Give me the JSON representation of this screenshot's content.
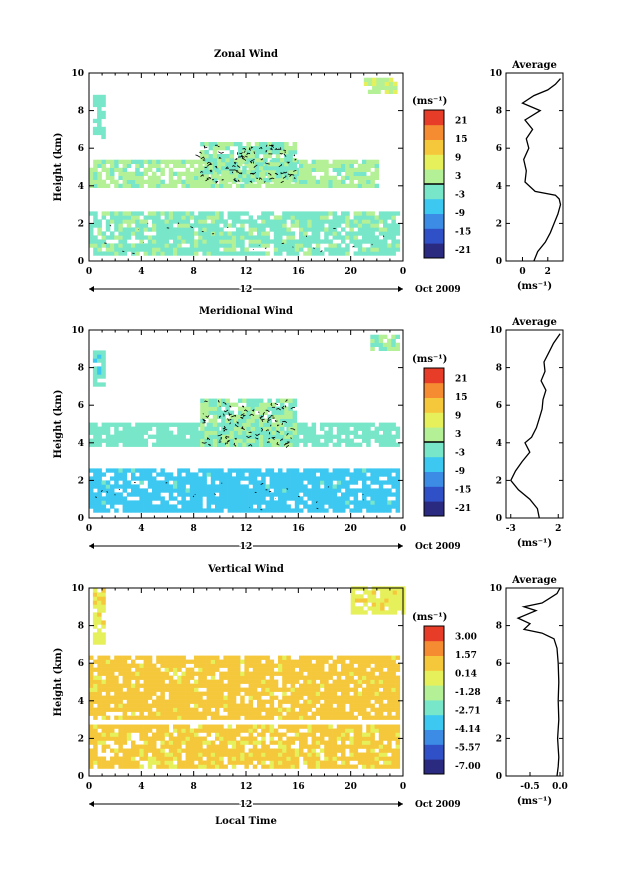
{
  "panels": [
    {
      "title": "Zonal Wind",
      "ylabel": "Height (km)",
      "xlabel": "",
      "date_label": "Oct 2009",
      "date_tick": "12",
      "xticks": [
        "0",
        "4",
        "8",
        "12",
        "16",
        "20",
        "0"
      ],
      "yticks": [
        "0",
        "2",
        "4",
        "6",
        "8",
        "10"
      ],
      "colorbar": {
        "unit": "(ms⁻¹)",
        "ticks": [
          "21",
          "15",
          "9",
          "3",
          "-3",
          "-9",
          "-15",
          "-21"
        ],
        "marker": "0"
      },
      "avg": {
        "title": "Average",
        "xlabel": "(ms⁻¹)",
        "xticks": [
          "0",
          "2"
        ],
        "yticks": [
          "0",
          "2",
          "4",
          "6",
          "8",
          "10"
        ]
      }
    },
    {
      "title": "Meridional Wind",
      "ylabel": "Height (km)",
      "xlabel": "",
      "date_label": "Oct 2009",
      "date_tick": "12",
      "xticks": [
        "0",
        "4",
        "8",
        "12",
        "16",
        "20",
        "0"
      ],
      "yticks": [
        "0",
        "2",
        "4",
        "6",
        "8",
        "10"
      ],
      "colorbar": {
        "unit": "(ms⁻¹)",
        "ticks": [
          "21",
          "15",
          "9",
          "3",
          "-3",
          "-9",
          "-15",
          "-21"
        ],
        "marker": "0"
      },
      "avg": {
        "title": "Average",
        "xlabel": "(ms⁻¹)",
        "xticks": [
          "-3",
          "2"
        ],
        "yticks": [
          "0",
          "2",
          "4",
          "6",
          "8",
          "10"
        ]
      }
    },
    {
      "title": "Vertical Wind",
      "ylabel": "Height (km)",
      "xlabel": "Local Time",
      "date_label": "Oct 2009",
      "date_tick": "12",
      "xticks": [
        "0",
        "4",
        "8",
        "12",
        "16",
        "20",
        "0"
      ],
      "yticks": [
        "0",
        "2",
        "4",
        "6",
        "8",
        "10"
      ],
      "colorbar": {
        "unit": "(ms⁻¹)",
        "ticks": [
          "3.00",
          "1.57",
          "0.14",
          "-1.28",
          "-2.71",
          "-4.14",
          "-5.57",
          "-7.00"
        ],
        "marker": ""
      },
      "avg": {
        "title": "Average",
        "xlabel": "(ms⁻¹)",
        "xticks": [
          "-0.5",
          "0.0"
        ],
        "yticks": [
          "0",
          "2",
          "4",
          "6",
          "8",
          "10"
        ]
      }
    }
  ],
  "colorbar_colors": [
    "#2a2a80",
    "#3050c8",
    "#3c8ce6",
    "#3cc8f0",
    "#78e6c8",
    "#b4f096",
    "#e6f05a",
    "#f5c83c",
    "#f58c32",
    "#e63c28"
  ],
  "chart_data": [
    {
      "type": "heatmap",
      "title": "Zonal Wind",
      "xlabel": "",
      "ylabel": "Height (km)",
      "xlim": [
        0,
        24
      ],
      "ylim": [
        0,
        10
      ],
      "colorbar_range": [
        -21,
        21
      ],
      "color_regions": [
        {
          "x": [
            0,
            23.5
          ],
          "y": [
            0.3,
            2.6
          ],
          "value": -1
        },
        {
          "x": [
            0,
            22
          ],
          "y": [
            3.9,
            5.2
          ],
          "value": 1
        },
        {
          "x": [
            8.5,
            15.8
          ],
          "y": [
            4.2,
            6.2
          ],
          "value": 0
        },
        {
          "x": [
            21,
            23.3
          ],
          "y": [
            8.9,
            9.6
          ],
          "value": 4
        },
        {
          "x": [
            0.3,
            1.2
          ],
          "y": [
            6.5,
            8.8
          ],
          "value": -2
        }
      ],
      "profile": {
        "title": "Average",
        "xlabel": "(ms⁻¹)",
        "xlim": [
          -1.3,
          3.2
        ],
        "x": [
          0.9,
          1.2,
          1.8,
          2.2,
          2.5,
          2.8,
          3.0,
          2.9,
          2.6,
          1.0,
          0.2,
          0.3,
          0.1,
          0.5,
          0.3,
          0.8,
          0.2,
          1.4,
          0.0,
          0.9,
          2.0,
          2.6,
          3.0
        ],
        "y": [
          0,
          0.5,
          1.0,
          1.5,
          2.0,
          2.5,
          3.0,
          3.3,
          3.5,
          3.7,
          4.2,
          4.8,
          5.4,
          6.0,
          6.5,
          7.0,
          7.5,
          8.0,
          8.4,
          8.8,
          9.1,
          9.4,
          9.7
        ]
      }
    },
    {
      "type": "heatmap",
      "title": "Meridional Wind",
      "xlabel": "",
      "ylabel": "Height (km)",
      "xlim": [
        0,
        24
      ],
      "ylim": [
        0,
        10
      ],
      "colorbar_range": [
        -21,
        21
      ],
      "color_regions": [
        {
          "x": [
            0,
            23.5
          ],
          "y": [
            0.3,
            2.6
          ],
          "value": -6
        },
        {
          "x": [
            0,
            23.5
          ],
          "y": [
            3.8,
            5.0
          ],
          "value": -2
        },
        {
          "x": [
            8.5,
            15.8
          ],
          "y": [
            3.8,
            6.2
          ],
          "value": 0
        },
        {
          "x": [
            21.5,
            23.5
          ],
          "y": [
            8.9,
            9.6
          ],
          "value": 0
        },
        {
          "x": [
            0.3,
            1.2
          ],
          "y": [
            7.0,
            8.8
          ],
          "value": -3
        }
      ],
      "profile": {
        "title": "Average",
        "xlabel": "(ms⁻¹)",
        "xlim": [
          -3.5,
          2.5
        ],
        "x": [
          0.0,
          -0.2,
          -1.0,
          -2.2,
          -3.0,
          -2.5,
          -1.8,
          -1.0,
          -1.5,
          -0.8,
          -0.3,
          0.0,
          0.3,
          0.4,
          0.7,
          0.2,
          0.6,
          0.5,
          1.0,
          1.5,
          2.2
        ],
        "y": [
          0,
          0.5,
          1.0,
          1.5,
          2.0,
          2.5,
          3.0,
          3.5,
          4.0,
          4.3,
          4.8,
          5.3,
          5.8,
          6.3,
          6.8,
          7.3,
          7.8,
          8.3,
          8.8,
          9.3,
          9.8
        ]
      }
    },
    {
      "type": "heatmap",
      "title": "Vertical Wind",
      "xlabel": "Local Time",
      "ylabel": "Height (km)",
      "xlim": [
        0,
        24
      ],
      "ylim": [
        0,
        10
      ],
      "colorbar_range": [
        -7.0,
        3.0
      ],
      "color_regions": [
        {
          "x": [
            0,
            23.5
          ],
          "y": [
            0.4,
            2.6
          ],
          "value": 0.3
        },
        {
          "x": [
            0,
            23.5
          ],
          "y": [
            3.0,
            6.2
          ],
          "value": 0.4
        },
        {
          "x": [
            20,
            24
          ],
          "y": [
            8.6,
            10
          ],
          "value": -0.3
        },
        {
          "x": [
            0.3,
            1.2
          ],
          "y": [
            7.0,
            9.8
          ],
          "value": -0.2
        }
      ],
      "profile": {
        "title": "Average",
        "xlabel": "(ms⁻¹)",
        "xlim": [
          -0.9,
          0.05
        ],
        "x": [
          -0.05,
          -0.03,
          -0.02,
          -0.04,
          -0.02,
          -0.03,
          -0.02,
          -0.03,
          -0.05,
          -0.1,
          -0.3,
          -0.6,
          -0.5,
          -0.7,
          -0.4,
          -0.6,
          -0.3,
          -0.2,
          -0.05,
          0.0
        ],
        "y": [
          0,
          0.5,
          1.0,
          2.0,
          3.0,
          4.0,
          5.0,
          6.0,
          6.8,
          7.3,
          7.6,
          7.8,
          8.1,
          8.4,
          8.8,
          9.0,
          9.2,
          9.4,
          9.7,
          10
        ]
      }
    }
  ]
}
